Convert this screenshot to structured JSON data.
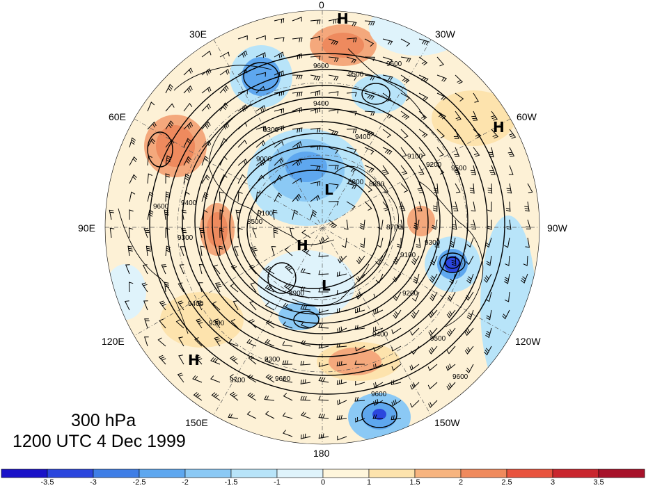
{
  "title": {
    "level": "300 hPa",
    "time": "1200 UTC 4 Dec 1999"
  },
  "longitude_labels": [
    "0",
    "30W",
    "60W",
    "90W",
    "120W",
    "150W",
    "180",
    "150E",
    "120E",
    "90E",
    "60E",
    "30E"
  ],
  "pressure_centers": [
    "H",
    "H",
    "H",
    "H",
    "L",
    "L"
  ],
  "contour_labels": [
    "9600",
    "9500",
    "9600",
    "9400",
    "9300",
    "9000",
    "9100",
    "9200",
    "9400",
    "9500",
    "8800",
    "8700",
    "9100",
    "9200",
    "9300",
    "8500",
    "8800",
    "8900",
    "9400",
    "9500",
    "9300",
    "9600",
    "9700",
    "9600",
    "9400",
    "9300",
    "9600",
    "9600",
    "9100",
    "9300",
    "9400"
  ],
  "colorbar": {
    "ticks": [
      "-3.5",
      "-3",
      "-2.5",
      "-2",
      "-1.5",
      "-1",
      "0",
      "1",
      "1.5",
      "2",
      "2.5",
      "3",
      "3.5"
    ],
    "colors": [
      "#1a12c8",
      "#2b46dd",
      "#3f7ee6",
      "#5ea7ef",
      "#8bc9f5",
      "#b8e4f9",
      "#dff3fb",
      "#fff6dc",
      "#fde3ad",
      "#f7b47f",
      "#ef8a5d",
      "#e8533e",
      "#c9262e",
      "#a7122a"
    ]
  },
  "colors": {
    "land_outline": "#000000",
    "height_contour": "#000000",
    "background": "#ffffff"
  }
}
